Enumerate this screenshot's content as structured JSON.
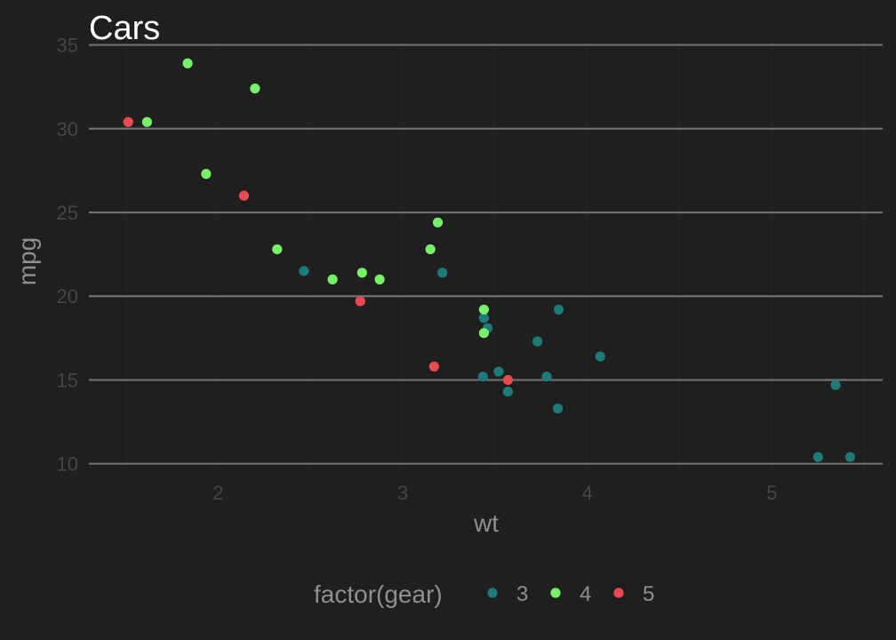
{
  "chart_data": {
    "type": "scatter",
    "title": "Cars",
    "xlabel": "wt",
    "ylabel": "mpg",
    "xlim": [
      1.3,
      5.6
    ],
    "ylim": [
      9.4,
      35.4
    ],
    "x_ticks": [
      2,
      3,
      4,
      5
    ],
    "y_ticks": [
      10,
      15,
      20,
      25,
      30,
      35
    ],
    "grid": "horizontal major lines only",
    "legend": {
      "title": "factor(gear)",
      "position": "bottom"
    },
    "colors": {
      "background": "#1f1f1f",
      "gridline": "#707070",
      "3": "#1f7a7a",
      "4": "#78f06a",
      "5": "#e84a52"
    },
    "series": [
      {
        "name": "3",
        "points": [
          [
            3.215,
            21.4
          ],
          [
            3.44,
            18.7
          ],
          [
            3.46,
            18.1
          ],
          [
            3.57,
            14.3
          ],
          [
            4.07,
            16.4
          ],
          [
            3.73,
            17.3
          ],
          [
            3.78,
            15.2
          ],
          [
            5.25,
            10.4
          ],
          [
            5.424,
            10.4
          ],
          [
            5.345,
            14.7
          ],
          [
            2.465,
            21.5
          ],
          [
            3.52,
            15.5
          ],
          [
            3.435,
            15.2
          ],
          [
            3.84,
            13.3
          ],
          [
            3.845,
            19.2
          ]
        ]
      },
      {
        "name": "4",
        "points": [
          [
            2.62,
            21.0
          ],
          [
            2.875,
            21.0
          ],
          [
            2.32,
            22.8
          ],
          [
            3.19,
            24.4
          ],
          [
            3.15,
            22.8
          ],
          [
            3.44,
            19.2
          ],
          [
            3.44,
            17.8
          ],
          [
            2.2,
            32.4
          ],
          [
            1.615,
            30.4
          ],
          [
            1.835,
            33.9
          ],
          [
            1.935,
            27.3
          ],
          [
            2.78,
            21.4
          ]
        ]
      },
      {
        "name": "5",
        "points": [
          [
            2.14,
            26.0
          ],
          [
            1.513,
            30.4
          ],
          [
            3.17,
            15.8
          ],
          [
            2.77,
            19.7
          ],
          [
            3.57,
            15.0
          ]
        ]
      }
    ]
  }
}
